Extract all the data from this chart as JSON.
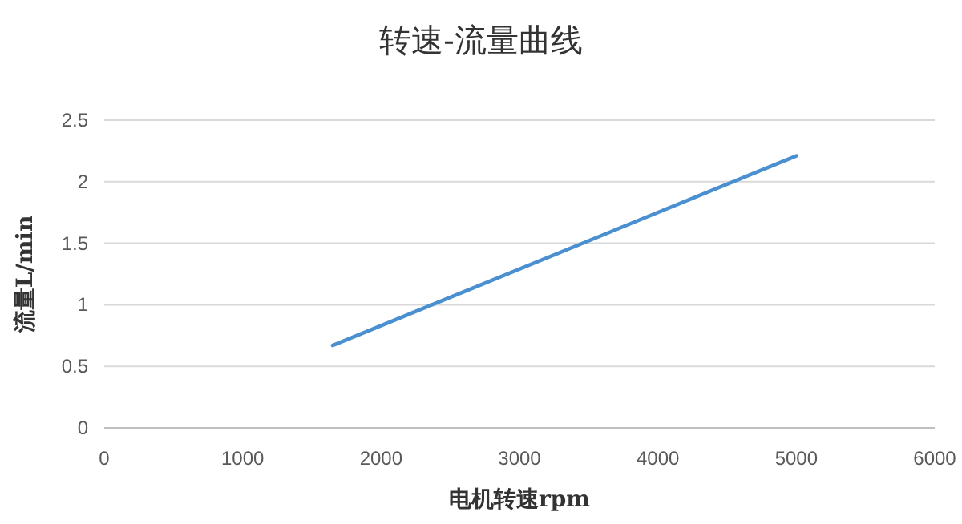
{
  "chart_data": {
    "type": "line",
    "title": "转速-流量曲线",
    "xlabel": "电机转速rpm",
    "ylabel": "流量L/min",
    "series": [
      {
        "color": "#4a8fd0",
        "x": [
          1650,
          5000
        ],
        "values": [
          0.67,
          2.21
        ]
      }
    ],
    "xlim": [
      0,
      6000
    ],
    "xticks": [
      0,
      1000,
      2000,
      3000,
      4000,
      5000,
      6000
    ],
    "ylim": [
      0,
      2.5
    ],
    "yticks": [
      0,
      0.5,
      1,
      1.5,
      2,
      2.5
    ],
    "grid": "y",
    "marker": "none",
    "line_style": "solid"
  }
}
